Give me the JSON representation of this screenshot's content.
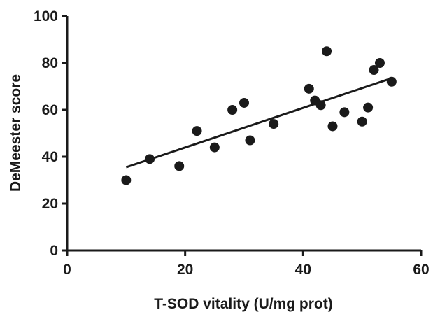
{
  "chart_data": {
    "type": "scatter",
    "xlabel": "T-SOD vitality (U/mg prot)",
    "ylabel": "DeMeester score",
    "xlim": [
      0,
      60
    ],
    "ylim": [
      0,
      100
    ],
    "xticks": [
      "0",
      "20",
      "40",
      "60"
    ],
    "yticks": [
      "0",
      "20",
      "40",
      "60",
      "80",
      "100"
    ],
    "grid": false,
    "series": [
      {
        "points": [
          {
            "x": 10,
            "y": 30
          },
          {
            "x": 14,
            "y": 39
          },
          {
            "x": 19,
            "y": 36
          },
          {
            "x": 22,
            "y": 51
          },
          {
            "x": 25,
            "y": 44
          },
          {
            "x": 28,
            "y": 60
          },
          {
            "x": 30,
            "y": 63
          },
          {
            "x": 31,
            "y": 47
          },
          {
            "x": 35,
            "y": 54
          },
          {
            "x": 41,
            "y": 69
          },
          {
            "x": 42,
            "y": 64
          },
          {
            "x": 43,
            "y": 62
          },
          {
            "x": 44,
            "y": 85
          },
          {
            "x": 45,
            "y": 53
          },
          {
            "x": 47,
            "y": 59
          },
          {
            "x": 50,
            "y": 55
          },
          {
            "x": 51,
            "y": 61
          },
          {
            "x": 52,
            "y": 77
          },
          {
            "x": 53,
            "y": 80
          },
          {
            "x": 55,
            "y": 72
          }
        ]
      }
    ],
    "fit_line": {
      "x": [
        10,
        55
      ],
      "y": [
        35.5,
        73.5
      ]
    },
    "colors": {
      "marker": "#1a1a1a",
      "line": "#1a1a1a",
      "axis": "#1a1a1a"
    }
  }
}
